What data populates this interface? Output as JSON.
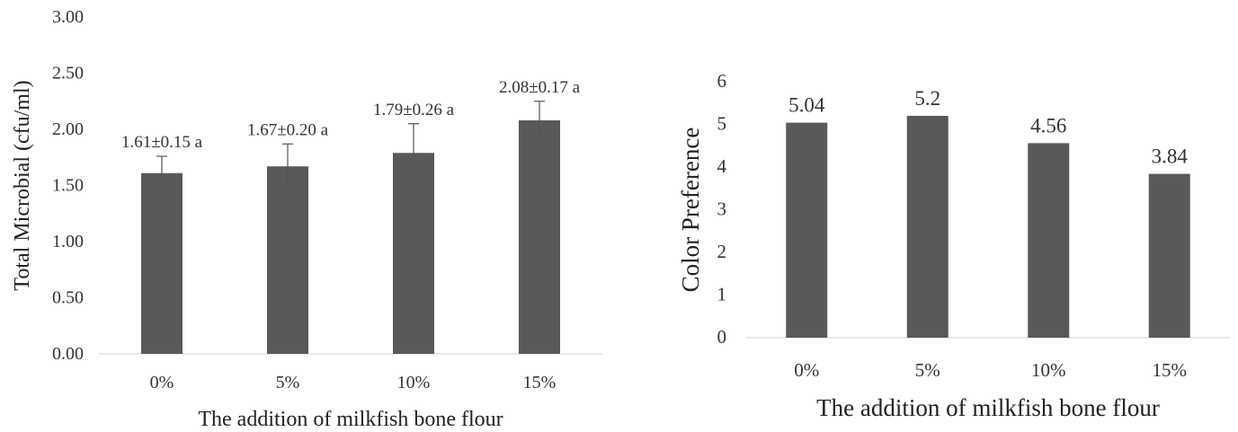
{
  "chart_data": [
    {
      "type": "bar",
      "categories": [
        "0%",
        "5%",
        "10%",
        "15%"
      ],
      "values": [
        1.61,
        1.67,
        1.79,
        2.08
      ],
      "errors": [
        0.15,
        0.2,
        0.26,
        0.17
      ],
      "data_labels": [
        "1.61±0.15 a",
        "1.67±0.20 a",
        "1.79±0.26 a",
        "2.08±0.17 a"
      ],
      "yticks": [
        "0.00",
        "0.50",
        "1.00",
        "1.50",
        "2.00",
        "2.50",
        "3.00"
      ],
      "ylim": [
        0,
        3
      ],
      "xlabel": "The addition of milkfish bone flour",
      "ylabel": "Total Microbial (cfu/ml)",
      "title": "",
      "grid": false,
      "bar_color": "#595959"
    },
    {
      "type": "bar",
      "categories": [
        "0%",
        "5%",
        "10%",
        "15%"
      ],
      "values": [
        5.04,
        5.2,
        4.56,
        3.84
      ],
      "data_labels": [
        "5.04",
        "5.2",
        "4.56",
        "3.84"
      ],
      "yticks": [
        "0",
        "1",
        "2",
        "3",
        "4",
        "5",
        "6"
      ],
      "ylim": [
        0,
        6
      ],
      "xlabel": "The addition of milkfish bone flour",
      "ylabel": "Color Preference",
      "title": "",
      "grid": false,
      "bar_color": "#595959"
    }
  ]
}
